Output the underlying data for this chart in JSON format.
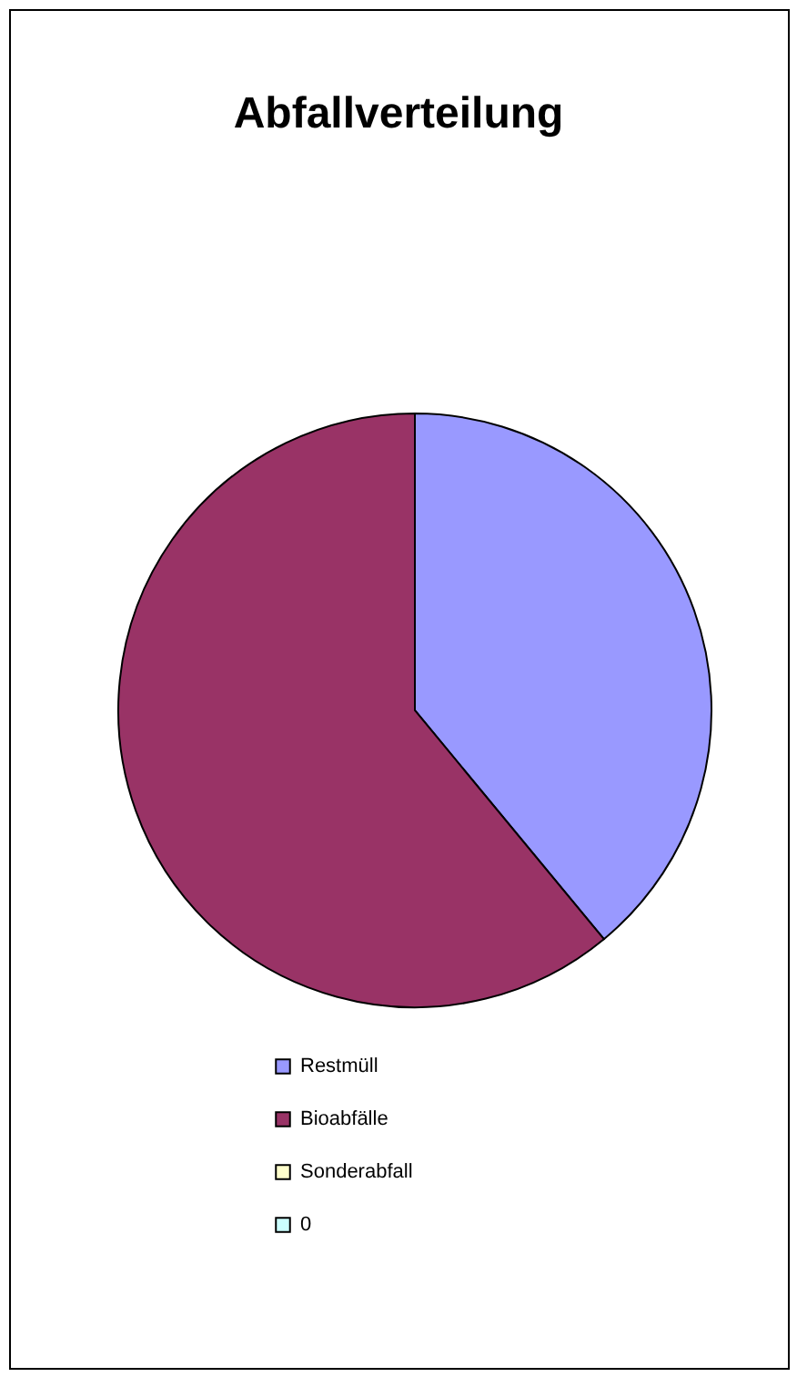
{
  "chart_data": {
    "type": "pie",
    "title": "Abfallverteilung",
    "categories": [
      "Restmüll",
      "Bioabfälle",
      "Sonderabfall",
      "0"
    ],
    "values": [
      39,
      61,
      0,
      0
    ],
    "colors": [
      "#9999ff",
      "#993366",
      "#ffffcc",
      "#ccffff"
    ],
    "legend": "bottom"
  }
}
